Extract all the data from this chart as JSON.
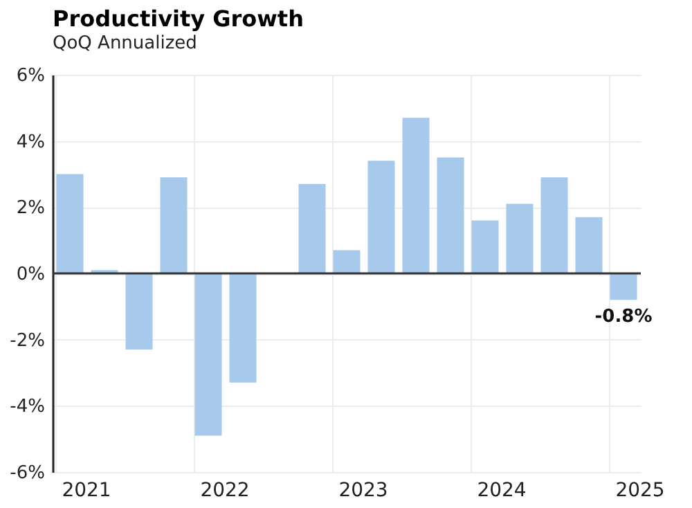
{
  "chart_data": {
    "type": "bar",
    "title": "Productivity Growth",
    "subtitle": "QoQ Annualized",
    "categories": [
      "2021",
      null,
      null,
      null,
      "2022",
      null,
      null,
      null,
      "2023",
      null,
      null,
      null,
      "2024",
      null,
      null,
      null,
      "2025"
    ],
    "values": [
      3.0,
      0.1,
      -2.3,
      2.9,
      -4.9,
      -3.3,
      0,
      2.7,
      0.7,
      3.4,
      4.7,
      3.5,
      1.6,
      2.1,
      2.9,
      1.7,
      -0.8
    ],
    "color": "#a7c9ec",
    "ylim": [
      -6,
      6
    ],
    "yticks": [
      {
        "value": -6,
        "label": "-6%"
      },
      {
        "value": -4,
        "label": "-4%"
      },
      {
        "value": -2,
        "label": "-2%"
      },
      {
        "value": 0,
        "label": "0%"
      },
      {
        "value": 2,
        "label": "2%"
      },
      {
        "value": 4,
        "label": "4%"
      },
      {
        "value": 6,
        "label": "6%"
      }
    ],
    "grid": true,
    "annotations": [
      {
        "text": "-0.8%",
        "x": "2025",
        "y": -0.8
      }
    ]
  }
}
